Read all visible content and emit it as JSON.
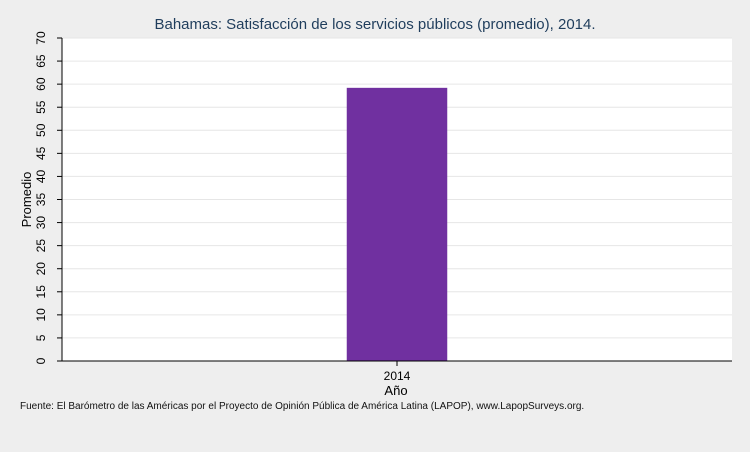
{
  "chart_data": {
    "type": "bar",
    "title": "Bahamas: Satisfacción de los servicios públicos (promedio), 2014.",
    "categories": [
      "2014"
    ],
    "values": [
      59.2
    ],
    "xlabel": "Año",
    "ylabel": "Promedio",
    "ylim": [
      0,
      70
    ],
    "yticks": [
      "0",
      "5",
      "10",
      "15",
      "20",
      "25",
      "30",
      "35",
      "40",
      "45",
      "50",
      "55",
      "60",
      "65",
      "70"
    ],
    "grid": true,
    "bar_color": "#7030a0",
    "source": "Fuente: El Barómetro de las Américas por el Proyecto de Opinión Pública de América Latina (LAPOP), www.LapopSurveys.org."
  }
}
